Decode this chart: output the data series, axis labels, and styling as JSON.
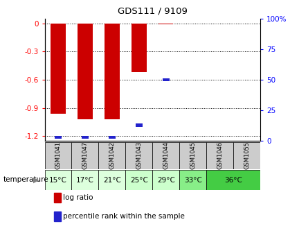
{
  "title": "GDS111 / 9109",
  "samples": [
    "GSM1041",
    "GSM1047",
    "GSM1042",
    "GSM1043",
    "GSM1044",
    "GSM1045",
    "GSM1046",
    "GSM1055"
  ],
  "log_ratios": [
    -0.96,
    -1.02,
    -1.02,
    -0.52,
    -0.01,
    0.0,
    0.0,
    0.0
  ],
  "percentile_ranks": [
    3,
    3,
    3,
    13,
    50,
    0,
    0,
    0
  ],
  "bar_color_red": "#cc0000",
  "bar_color_blue": "#2222cc",
  "ylim_left": [
    -1.25,
    0.05
  ],
  "ylim_right": [
    0,
    100
  ],
  "left_ticks": [
    0,
    -0.3,
    -0.6,
    -0.9,
    -1.2
  ],
  "right_ticks": [
    0,
    25,
    50,
    75,
    100
  ],
  "right_tick_labels": [
    "0",
    "25",
    "50",
    "75",
    "100%"
  ],
  "temp_groups": [
    {
      "label": "15°C",
      "start": 0,
      "end": 0,
      "color": "#ddffdd"
    },
    {
      "label": "17°C",
      "start": 1,
      "end": 1,
      "color": "#ddffdd"
    },
    {
      "label": "21°C",
      "start": 2,
      "end": 2,
      "color": "#ddffdd"
    },
    {
      "label": "25°C",
      "start": 3,
      "end": 3,
      "color": "#ccffcc"
    },
    {
      "label": "29°C",
      "start": 4,
      "end": 4,
      "color": "#ccffcc"
    },
    {
      "label": "33°C",
      "start": 5,
      "end": 5,
      "color": "#88ee88"
    },
    {
      "label": "36°C",
      "start": 6,
      "end": 7,
      "color": "#44cc44"
    }
  ],
  "sample_bg_color": "#cccccc",
  "legend_log_ratio": "log ratio",
  "legend_percentile": "percentile rank within the sample",
  "temp_label": "temperature"
}
